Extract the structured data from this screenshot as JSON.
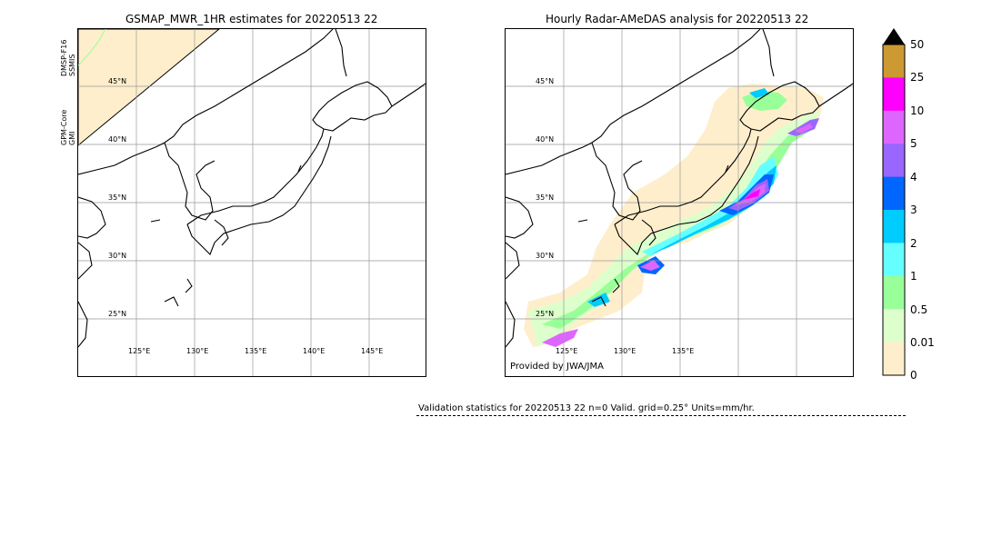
{
  "left_panel": {
    "title": "GSMAP_MWR_1HR estimates for 20220513 22",
    "sensors": [
      {
        "line1": "DMSP-F16",
        "line2": "SSMIS"
      },
      {
        "line1": "GPM-Core",
        "line2": "GMI"
      }
    ],
    "lat_labels": [
      "45°N",
      "40°N",
      "35°N",
      "30°N",
      "25°N"
    ],
    "lon_labels": [
      "125°E",
      "130°E",
      "135°E",
      "140°E",
      "145°E"
    ]
  },
  "right_panel": {
    "title": "Hourly Radar-AMeDAS analysis for 20220513 22",
    "lat_labels": [
      "45°N",
      "40°N",
      "35°N",
      "30°N",
      "25°N"
    ],
    "lon_labels": [
      "125°E",
      "130°E",
      "135°E"
    ],
    "credit": "Provided by JWA/JMA"
  },
  "colorbar": {
    "labels": [
      "50",
      "25",
      "10",
      "5",
      "4",
      "3",
      "2",
      "1",
      "0.5",
      "0.01",
      "0"
    ],
    "colors": [
      "#cc9933",
      "#ff00ff",
      "#dd66ff",
      "#9966ff",
      "#0066ff",
      "#00ccff",
      "#66ffff",
      "#99ff99",
      "#ddffcc",
      "#ffeecc"
    ],
    "extend_color": "#000000"
  },
  "validation": {
    "text": "Validation statistics for 20220513 22  n=0 Valid. grid=0.25° Units=mm/hr."
  }
}
